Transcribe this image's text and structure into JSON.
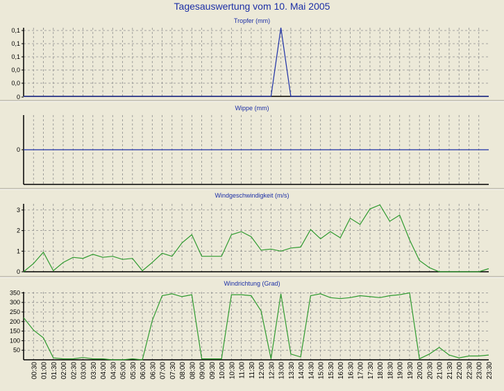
{
  "title": "Tagesauswertung vom 10. Mai 2005",
  "colors": {
    "background": "#ece9d8",
    "title": "#1c2fa6",
    "blue_series": "#1c2fa6",
    "green_series": "#2e9a2e",
    "grid": "#8c8c8c"
  },
  "chart_data": [
    {
      "type": "line",
      "title": "Tropfer (mm)",
      "ytick_labels": [
        "0,1",
        "0,1",
        "0,1",
        "0,0",
        "0,0",
        "0"
      ],
      "ylim": [
        0,
        0.1
      ],
      "color": "blue",
      "series": [
        {
          "x": [
            0,
            12.5,
            13.0,
            13.5,
            23.5
          ],
          "values": [
            0,
            0,
            0.1,
            0,
            0
          ]
        }
      ]
    },
    {
      "type": "line",
      "title": "Wippe (mm)",
      "ytick_labels": [
        "0"
      ],
      "ylim": [
        -1,
        1
      ],
      "color": "blue",
      "series": [
        {
          "x": [
            0,
            23.5
          ],
          "values": [
            0,
            0
          ]
        }
      ]
    },
    {
      "type": "line",
      "title": "Windgeschwindigkeit (m/s)",
      "ytick_labels": [
        "3",
        "2",
        "1",
        "0"
      ],
      "ytick_values": [
        3,
        2,
        1,
        0
      ],
      "ylim": [
        0,
        3.3
      ],
      "color": "green",
      "series": [
        {
          "x": [
            0,
            0.5,
            1,
            1.5,
            2,
            2.5,
            3,
            3.5,
            4,
            4.5,
            5,
            5.5,
            6,
            6.5,
            7,
            7.5,
            8,
            8.5,
            9,
            9.5,
            10,
            10.5,
            11,
            11.5,
            12,
            12.5,
            13,
            13.5,
            14,
            14.5,
            15,
            15.5,
            16,
            16.5,
            17,
            17.5,
            18,
            18.5,
            19,
            19.5,
            20,
            20.5,
            21,
            21.5,
            22,
            22.5,
            23,
            23.5
          ],
          "values": [
            0,
            0.4,
            0.95,
            0.05,
            0.45,
            0.7,
            0.65,
            0.85,
            0.7,
            0.75,
            0.6,
            0.65,
            0.05,
            0.45,
            0.9,
            0.75,
            1.4,
            1.8,
            0.75,
            0.75,
            0.75,
            1.8,
            1.95,
            1.7,
            1.05,
            1.1,
            1.0,
            1.15,
            1.2,
            2.05,
            1.6,
            1.95,
            1.65,
            2.6,
            2.3,
            3.05,
            3.25,
            2.45,
            2.75,
            1.55,
            0.55,
            0.2,
            0,
            0,
            0,
            0,
            0,
            0.15
          ]
        }
      ]
    },
    {
      "type": "line",
      "title": "Windrichtung (Grad)",
      "ytick_labels": [
        "350",
        "300",
        "250",
        "200",
        "150",
        "100",
        "50"
      ],
      "ytick_values": [
        350,
        300,
        250,
        200,
        150,
        100,
        50
      ],
      "ylim": [
        0,
        355
      ],
      "color": "green",
      "xtick_labels": [
        "00:30",
        "01:00",
        "01:30",
        "02:00",
        "02:30",
        "03:00",
        "03:30",
        "04:00",
        "04:30",
        "05:00",
        "05:30",
        "06:00",
        "06:30",
        "07:00",
        "07:30",
        "08:00",
        "08:30",
        "09:00",
        "09:30",
        "10:00",
        "10:30",
        "11:00",
        "11:30",
        "12:00",
        "12:30",
        "13:00",
        "13:30",
        "14:00",
        "14:30",
        "15:00",
        "15:30",
        "16:00",
        "16:30",
        "17:00",
        "17:30",
        "18:00",
        "18:30",
        "19:00",
        "19:30",
        "20:00",
        "20:30",
        "21:00",
        "21:30",
        "22:00",
        "22:30",
        "23:00",
        "23:30"
      ],
      "series": [
        {
          "x": [
            0,
            0.5,
            1,
            1.5,
            2,
            2.5,
            3,
            3.5,
            4,
            4.5,
            5,
            5.5,
            6,
            6.5,
            7,
            7.5,
            8,
            8.5,
            9,
            9.5,
            10,
            10.5,
            11,
            11.5,
            12,
            12.5,
            13,
            13.5,
            14,
            14.5,
            15,
            15.5,
            16,
            16.5,
            17,
            17.5,
            18,
            18.5,
            19,
            19.5,
            20,
            20.5,
            21,
            21.5,
            22,
            22.5,
            23,
            23.5
          ],
          "values": [
            220,
            155,
            115,
            10,
            5,
            5,
            12,
            5,
            5,
            0,
            0,
            5,
            0,
            205,
            335,
            345,
            330,
            340,
            5,
            5,
            5,
            340,
            340,
            335,
            255,
            5,
            345,
            30,
            15,
            335,
            345,
            325,
            320,
            325,
            335,
            330,
            325,
            335,
            340,
            350,
            5,
            30,
            65,
            25,
            10,
            20,
            20,
            25
          ]
        }
      ]
    }
  ]
}
